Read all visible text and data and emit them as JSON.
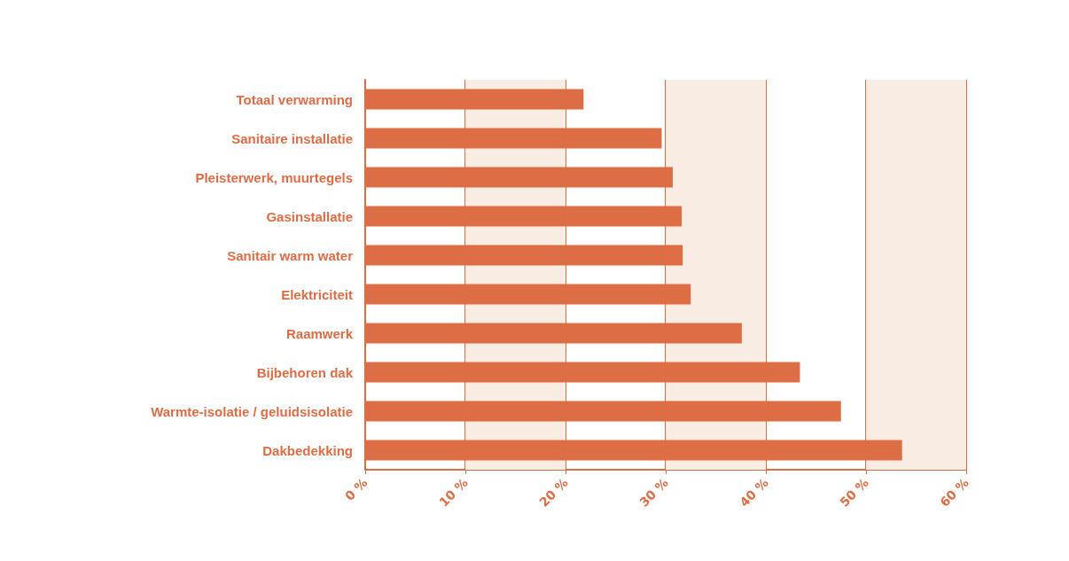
{
  "chart_data": {
    "type": "bar",
    "orientation": "horizontal",
    "categories": [
      "Totaal verwarming",
      "Sanitaire installatie",
      "Pleisterwerk, muurtegels",
      "Gasinstallatie",
      "Sanitair warm water",
      "Elektriciteit",
      "Raamwerk",
      "Bijbehoren dak",
      "Warmte-isolatie / geluidsisolatie",
      "Dakbedekking"
    ],
    "values": [
      21.8,
      29.6,
      30.7,
      31.6,
      31.7,
      32.5,
      37.6,
      43.4,
      47.5,
      53.6
    ],
    "color": "#dd6d45",
    "xlim": [
      0,
      60
    ],
    "xticks": [
      {
        "value": 0,
        "label": "0 %"
      },
      {
        "value": 10,
        "label": "10 %"
      },
      {
        "value": 20,
        "label": "20 %"
      },
      {
        "value": 30,
        "label": "30 %"
      },
      {
        "value": 40,
        "label": "40 %"
      },
      {
        "value": 50,
        "label": "50 %"
      },
      {
        "value": 60,
        "label": "60 %"
      }
    ],
    "grid": "x",
    "bands": [
      {
        "axis": "x",
        "from": 10,
        "to": 20,
        "color": "#f9ece3"
      },
      {
        "axis": "x",
        "from": 30,
        "to": 40,
        "color": "#f9ece3"
      },
      {
        "axis": "x",
        "from": 50,
        "to": 60,
        "color": "#f9ece3"
      }
    ]
  }
}
